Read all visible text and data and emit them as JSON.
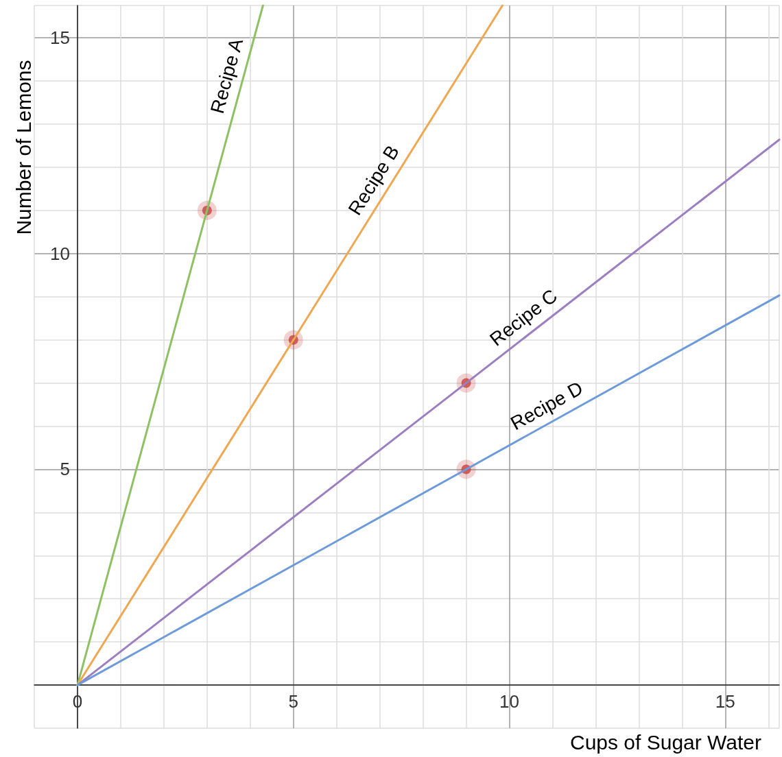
{
  "chart_data": {
    "type": "line",
    "xlabel": "Cups of Sugar Water",
    "ylabel": "Number of Lemons",
    "xlim": [
      -1,
      16.25
    ],
    "ylim": [
      -1,
      15.75
    ],
    "xticks": [
      0,
      5,
      10,
      15
    ],
    "yticks": [
      5,
      10,
      15
    ],
    "grid": true,
    "legend": false,
    "marker": "none",
    "line_style": "solid",
    "series": [
      {
        "name": "Recipe A",
        "color": "#8dc163",
        "x": [
          0,
          3,
          4.295
        ],
        "values": [
          0,
          11,
          15.75
        ]
      },
      {
        "name": "Recipe B",
        "color": "#f0a752",
        "x": [
          0,
          5,
          9.84
        ],
        "values": [
          0,
          8,
          15.75
        ]
      },
      {
        "name": "Recipe C",
        "color": "#9b7fc0",
        "x": [
          0,
          9,
          16.25
        ],
        "values": [
          0,
          7,
          12.64
        ]
      },
      {
        "name": "Recipe D",
        "color": "#6d9ad8",
        "x": [
          0,
          9,
          16.25
        ],
        "values": [
          0,
          5,
          9.03
        ]
      },
      {
        "type": "scatter",
        "marker": "circle",
        "color": "#c74440",
        "x": [
          3,
          5,
          9,
          9
        ],
        "values": [
          11,
          8,
          7,
          5
        ]
      }
    ]
  }
}
